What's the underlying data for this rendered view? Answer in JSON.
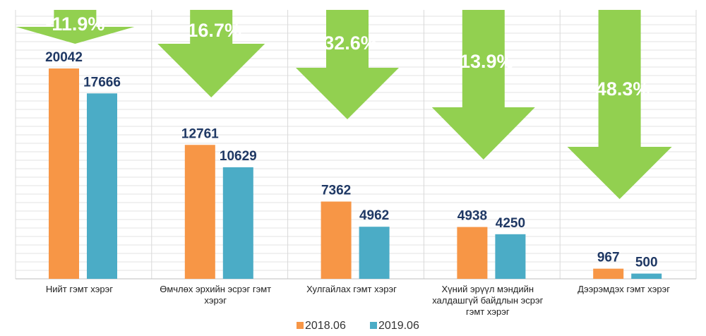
{
  "chart_data": {
    "type": "bar",
    "title": "",
    "xlabel": "",
    "ylabel": "",
    "ylim": [
      0,
      20042
    ],
    "grid": true,
    "legend_position": "bottom",
    "categories": [
      [
        "Нийт гэмт хэрэг"
      ],
      [
        "Өмчлөх эрхийн эсрэг гэмт",
        "хэрэг"
      ],
      [
        "Хулгайлах гэмт хэрэг"
      ],
      [
        "Хүний эрүүл мэндийн",
        "халдашгүй байдлын эсрэг",
        "гэмт хэрэг"
      ],
      [
        "Дээрэмдэх гэмт хэрэг"
      ]
    ],
    "series": [
      {
        "name": "2018.06",
        "color": "#f79646",
        "values": [
          20042,
          12761,
          7362,
          4938,
          967
        ]
      },
      {
        "name": "2019.06",
        "color": "#4bacc6",
        "values": [
          17666,
          10629,
          4962,
          4250,
          500
        ]
      }
    ],
    "annotations": {
      "color": "#92d050",
      "labels": [
        "-11.9%",
        "-16.7%",
        "-32.6%",
        "-13.9%",
        "-48.3%"
      ]
    }
  }
}
